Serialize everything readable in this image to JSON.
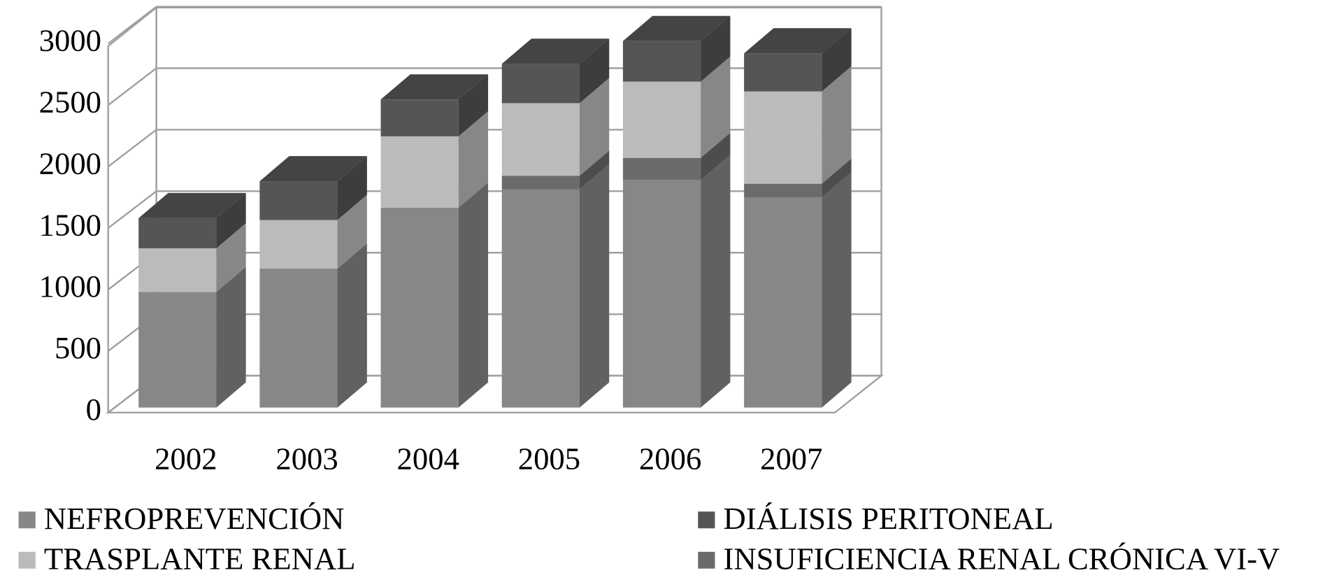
{
  "chart_data": {
    "type": "bar3d_stacked",
    "categories": [
      "2002",
      "2003",
      "2004",
      "2005",
      "2006",
      "2007"
    ],
    "series": [
      {
        "name": "NEFROPREVENCIÓN",
        "color": "#878787",
        "values": [
          940,
          1130,
          1625,
          1775,
          1850,
          1710
        ]
      },
      {
        "name": "INSUFICIENCIA RENAL CRÓNICA VI-V",
        "color": "#6b6b6b",
        "values": [
          null,
          null,
          null,
          110,
          180,
          110
        ]
      },
      {
        "name": "TRASPLANTE RENAL",
        "color": "#bbbbbb",
        "values": [
          355,
          395,
          580,
          590,
          620,
          750
        ]
      },
      {
        "name": "DIÁLISIS PERITONEAL",
        "color": "#555555",
        "values": [
          245,
          315,
          300,
          320,
          330,
          310
        ]
      }
    ],
    "ylim": [
      0,
      3000
    ],
    "yticks": [
      0,
      500,
      1000,
      1500,
      2000,
      2500,
      3000
    ],
    "grid": true
  }
}
